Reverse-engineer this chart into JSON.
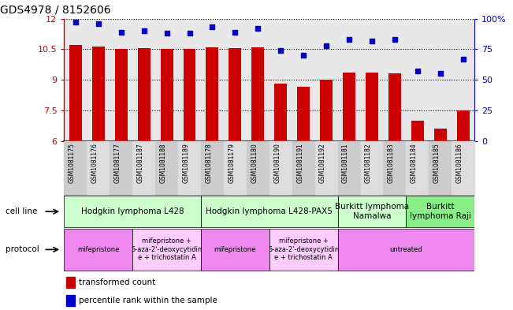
{
  "title": "GDS4978 / 8152606",
  "samples": [
    "GSM1081175",
    "GSM1081176",
    "GSM1081177",
    "GSM1081187",
    "GSM1081188",
    "GSM1081189",
    "GSM1081178",
    "GSM1081179",
    "GSM1081180",
    "GSM1081190",
    "GSM1081191",
    "GSM1081192",
    "GSM1081181",
    "GSM1081182",
    "GSM1081183",
    "GSM1081184",
    "GSM1081185",
    "GSM1081186"
  ],
  "bar_values": [
    10.7,
    10.65,
    10.5,
    10.55,
    10.5,
    10.5,
    10.6,
    10.55,
    10.6,
    8.8,
    8.65,
    9.0,
    9.35,
    9.35,
    9.3,
    7.0,
    6.6,
    7.5
  ],
  "dot_values": [
    97,
    96,
    89,
    90,
    88,
    88,
    93,
    89,
    92,
    74,
    70,
    78,
    83,
    82,
    83,
    57,
    55,
    67
  ],
  "bar_color": "#cc0000",
  "dot_color": "#0000cc",
  "ylim_left": [
    6,
    12
  ],
  "ylim_right": [
    0,
    100
  ],
  "yticks_left": [
    6,
    7.5,
    9,
    10.5,
    12
  ],
  "yticks_right": [
    0,
    25,
    50,
    75,
    100
  ],
  "ytick_labels_left": [
    "6",
    "7.5",
    "9",
    "10.5",
    "12"
  ],
  "ytick_labels_right": [
    "0",
    "25",
    "50",
    "75",
    "100%"
  ],
  "cell_line_groups": [
    {
      "label": "Hodgkin lymphoma L428",
      "start": 0,
      "end": 6,
      "color": "#ccffcc"
    },
    {
      "label": "Hodgkin lymphoma L428-PAX5",
      "start": 6,
      "end": 12,
      "color": "#ccffcc"
    },
    {
      "label": "Burkitt lymphoma\nNamalwa",
      "start": 12,
      "end": 15,
      "color": "#ccffcc"
    },
    {
      "label": "Burkitt\nlymphoma Raji",
      "start": 15,
      "end": 18,
      "color": "#88ee88"
    }
  ],
  "protocol_groups": [
    {
      "label": "mifepristone",
      "start": 0,
      "end": 3,
      "color": "#ee88ee"
    },
    {
      "label": "mifepristone +\n5-aza-2'-deoxycytidin\ne + trichostatin A",
      "start": 3,
      "end": 6,
      "color": "#ffccff"
    },
    {
      "label": "mifepristone",
      "start": 6,
      "end": 9,
      "color": "#ee88ee"
    },
    {
      "label": "mifepristone +\n5-aza-2'-deoxycytidin\ne + trichostatin A",
      "start": 9,
      "end": 12,
      "color": "#ffccff"
    },
    {
      "label": "untreated",
      "start": 12,
      "end": 18,
      "color": "#ee88ee"
    }
  ],
  "plot_bg_color": "#e8e8e8",
  "xlabel_bg_even": "#cccccc",
  "xlabel_bg_odd": "#dddddd",
  "cell_line_label_fontsize": 7.5,
  "protocol_label_fontsize": 6.0
}
